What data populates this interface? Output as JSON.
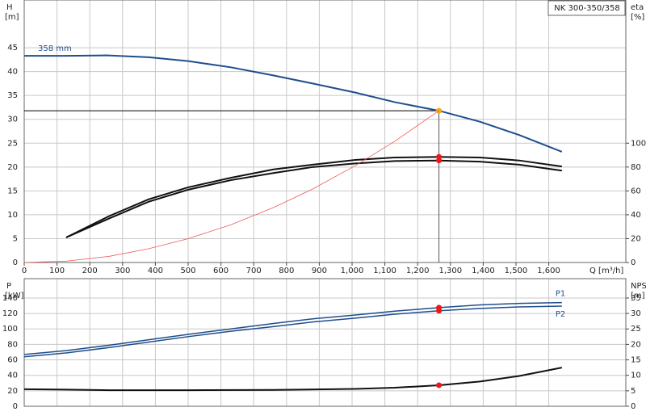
{
  "chart_data": [
    {
      "type": "line",
      "title": "NK 300-350/358",
      "x_label": "Q [m³/h]",
      "y_label": "H",
      "y_unit": "[m]",
      "y2_label": "eta",
      "y2_unit": "[%]",
      "xlim": [
        0,
        1835
      ],
      "xticks": [
        0,
        100,
        200,
        300,
        400,
        500,
        600,
        700,
        800,
        900,
        {
          "value": 1000,
          "label": "1,000"
        },
        {
          "value": 1100,
          "label": "1,100"
        },
        {
          "value": 1200,
          "label": "1,200"
        },
        {
          "value": 1300,
          "label": "1,300"
        },
        {
          "value": 1400,
          "label": "1,400"
        },
        {
          "value": 1500,
          "label": "1,500"
        },
        {
          "value": 1600,
          "label": "1,600"
        }
      ],
      "ylim": [
        0,
        55
      ],
      "yticks": [
        0,
        5,
        10,
        15,
        20,
        25,
        30,
        35,
        40,
        45
      ],
      "y2lim": [
        0,
        220
      ],
      "y2ticks": [
        0,
        20,
        40,
        60,
        80,
        100
      ],
      "grid": true,
      "highlight_x": 1265,
      "series": [
        {
          "name": "358 mm",
          "color": "#1f4e8c",
          "width": 2,
          "marker_color": "#f5a623",
          "guide": true,
          "x": [
            0,
            130,
            250,
            380,
            500,
            630,
            760,
            880,
            1010,
            1130,
            1265,
            1390,
            1510,
            1640
          ],
          "values": [
            43.3,
            43.3,
            43.4,
            43.0,
            42.2,
            40.9,
            39.2,
            37.5,
            35.6,
            33.6,
            31.8,
            29.5,
            26.7,
            23.2
          ]
        },
        {
          "color": "#111111",
          "width": 2,
          "axis": "y2",
          "marker_color": "#e8191c",
          "x": [
            128,
            260,
            380,
            500,
            630,
            760,
            880,
            1010,
            1130,
            1265,
            1390,
            1510,
            1640
          ],
          "values": [
            21,
            39,
            53,
            63,
            71,
            78,
            82,
            86,
            88,
            88.5,
            88,
            85.5,
            80.5
          ]
        },
        {
          "color": "#111111",
          "width": 2,
          "axis": "y2",
          "marker_color": "#e8191c",
          "x": [
            128,
            260,
            380,
            500,
            630,
            760,
            880,
            1010,
            1130,
            1265,
            1390,
            1510,
            1640
          ],
          "values": [
            21,
            37,
            51,
            61,
            69,
            75,
            80,
            83,
            85,
            85.5,
            84.5,
            82,
            77
          ]
        },
        {
          "color": "#f05a5a",
          "width": 0.8,
          "x": [
            0,
            130,
            260,
            380,
            500,
            630,
            760,
            880,
            1010,
            1130,
            1265
          ],
          "values": [
            0,
            0.3,
            1.3,
            2.9,
            5.0,
            7.9,
            11.5,
            15.4,
            20.3,
            25.4,
            31.8
          ]
        }
      ]
    },
    {
      "type": "line",
      "y_label": "P",
      "y_unit": "[kW]",
      "y2_label": "NPSH",
      "y2_unit": "[m]",
      "xlim": [
        0,
        1835
      ],
      "ylim": [
        0,
        165
      ],
      "yticks": [
        0,
        20,
        40,
        60,
        80,
        100,
        120,
        140
      ],
      "y2lim": [
        0,
        41.25
      ],
      "y2ticks": [
        0,
        5,
        10,
        15,
        20,
        25,
        30,
        35
      ],
      "grid": true,
      "highlight_x": 1265,
      "series": [
        {
          "name": "P1",
          "color": "#1f4e8c",
          "width": 1.5,
          "marker_color": "#e8191c",
          "x": [
            0,
            130,
            260,
            380,
            500,
            630,
            760,
            880,
            1010,
            1130,
            1265,
            1390,
            1510,
            1640
          ],
          "values": [
            67,
            72,
            79,
            86,
            93,
            100,
            107,
            113,
            118,
            123,
            127.5,
            131,
            133,
            134
          ]
        },
        {
          "name": "P2",
          "color": "#1f4e8c",
          "width": 1.5,
          "marker_color": "#e8191c",
          "x": [
            0,
            130,
            260,
            380,
            500,
            630,
            760,
            880,
            1010,
            1130,
            1265,
            1390,
            1510,
            1640
          ],
          "values": [
            64,
            69,
            76,
            83,
            90,
            97,
            103,
            109,
            114,
            119,
            123.5,
            126.5,
            128.5,
            129.5
          ]
        },
        {
          "color": "#111111",
          "width": 2,
          "axis": "y2",
          "marker_color": "#e8191c",
          "x": [
            0,
            130,
            260,
            500,
            760,
            1010,
            1130,
            1265,
            1390,
            1510,
            1640
          ],
          "values": [
            5.5,
            5.4,
            5.2,
            5.2,
            5.3,
            5.6,
            6.0,
            6.8,
            8.0,
            9.8,
            12.5
          ]
        }
      ]
    }
  ]
}
